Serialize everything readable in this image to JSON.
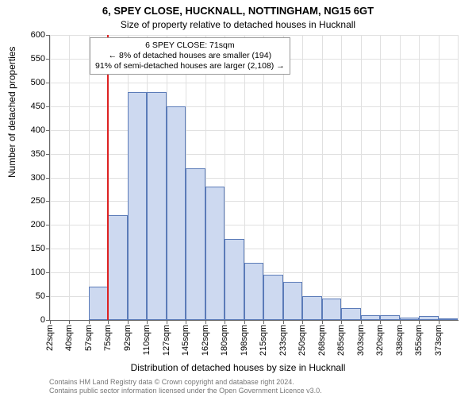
{
  "title_main": "6, SPEY CLOSE, HUCKNALL, NOTTINGHAM, NG15 6GT",
  "title_sub": "Size of property relative to detached houses in Hucknall",
  "y_axis_label": "Number of detached properties",
  "x_axis_label": "Distribution of detached houses by size in Hucknall",
  "footer_line1": "Contains HM Land Registry data © Crown copyright and database right 2024.",
  "footer_line2": "Contains public sector information licensed under the Open Government Licence v3.0.",
  "info_box": {
    "line1": "6 SPEY CLOSE: 71sqm",
    "line2": "← 8% of detached houses are smaller (194)",
    "line3": "91% of semi-detached houses are larger (2,108) →"
  },
  "chart": {
    "type": "histogram",
    "ylim": [
      0,
      600
    ],
    "ytick_step": 50,
    "bar_fill": "#cdd9f0",
    "bar_border": "#5b7bb8",
    "grid_color": "#e0e0e0",
    "background_color": "#ffffff",
    "marker_color": "#d22",
    "marker_category_index": 3,
    "xtick_labels": [
      "22sqm",
      "40sqm",
      "57sqm",
      "75sqm",
      "92sqm",
      "110sqm",
      "127sqm",
      "145sqm",
      "162sqm",
      "180sqm",
      "198sqm",
      "215sqm",
      "233sqm",
      "250sqm",
      "268sqm",
      "285sqm",
      "303sqm",
      "320sqm",
      "338sqm",
      "355sqm",
      "373sqm"
    ],
    "values": [
      0,
      0,
      70,
      220,
      480,
      480,
      450,
      320,
      280,
      170,
      120,
      95,
      80,
      50,
      45,
      25,
      10,
      10,
      5,
      8,
      3
    ],
    "title_fontsize": 13,
    "label_fontsize": 12,
    "tick_fontsize": 11
  }
}
